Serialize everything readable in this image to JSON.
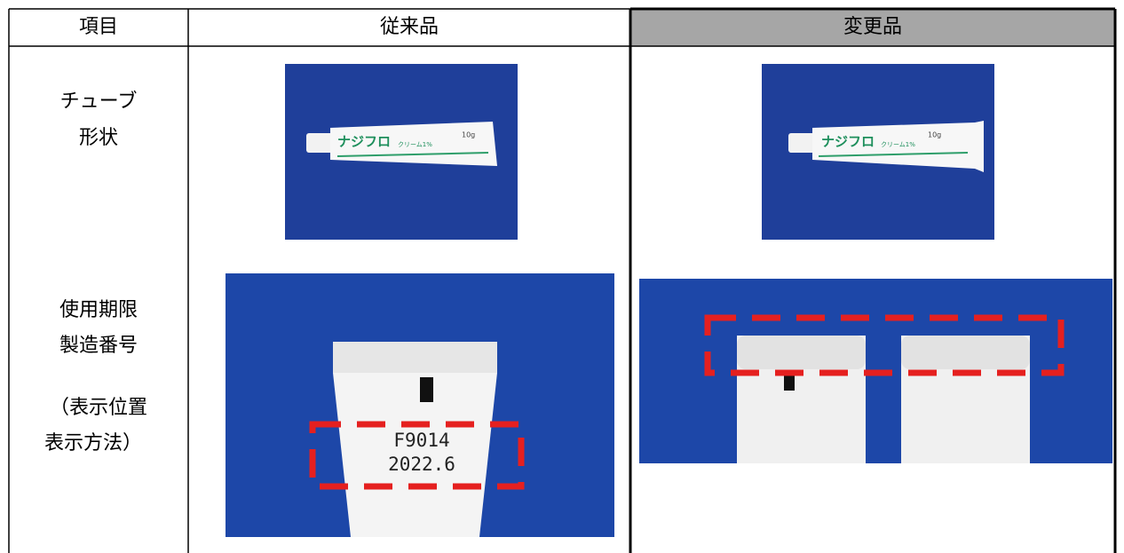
{
  "table": {
    "header": [
      "項目",
      "従来品",
      "変更品"
    ],
    "rows": [
      {
        "item": [
          "チューブ",
          "形状"
        ]
      },
      {
        "item": [
          "使用期限",
          "製造番号",
          "（表示位置",
          "表示方法）"
        ]
      }
    ]
  },
  "photos": {
    "old_tube": {
      "brand": "ナジフロ",
      "product": "クリーム1%",
      "size": "10g"
    },
    "new_tube": {
      "brand": "ナジフロ",
      "product": "クリーム1%",
      "size": "10g"
    },
    "old_code": [
      "F9014",
      "2022.6"
    ]
  }
}
